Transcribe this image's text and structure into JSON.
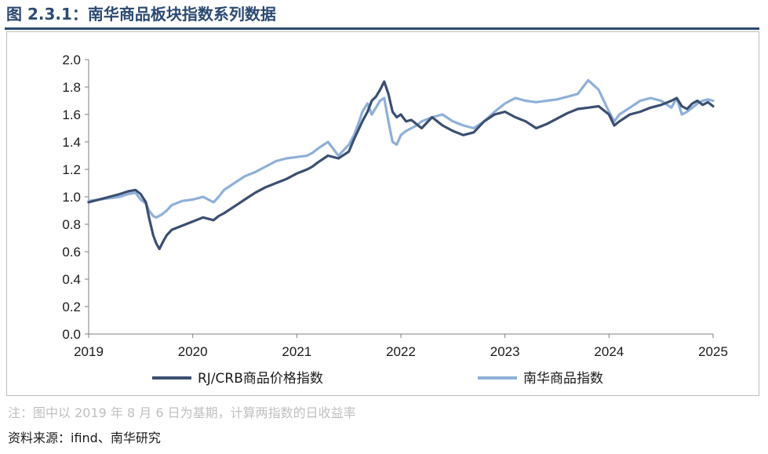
{
  "header": {
    "title": "图 2.3.1：南华商品板块指数系列数据"
  },
  "footer": {
    "note": "注：图中以 2019 年 8 月 6 日为基期，计算两指数的日收益率",
    "source": "资料来源：ifind、南华研究"
  },
  "colors": {
    "title": "#2c4a72",
    "series_dark": "#3b4f71",
    "series_light": "#8eb0d8",
    "axis": "#7f7f7f"
  },
  "chart_data": {
    "type": "line",
    "title": "",
    "xlabel": "",
    "ylabel": "",
    "xlim": [
      2019,
      2025
    ],
    "ylim": [
      0,
      2
    ],
    "xticks": [
      "2019",
      "2020",
      "2021",
      "2022",
      "2023",
      "2024",
      "2025"
    ],
    "yticks": [
      "0.0",
      "0.2",
      "0.4",
      "0.6",
      "0.8",
      "1.0",
      "1.2",
      "1.4",
      "1.6",
      "1.8",
      "2.0"
    ],
    "grid": false,
    "legend": "bottom",
    "series": [
      {
        "name": "RJ/CRB商品价格指数",
        "color": "#3b4f71",
        "x": [
          2019.0,
          2019.1,
          2019.2,
          2019.3,
          2019.38,
          2019.45,
          2019.5,
          2019.55,
          2019.58,
          2019.62,
          2019.65,
          2019.68,
          2019.72,
          2019.75,
          2019.8,
          2019.9,
          2020.0,
          2020.1,
          2020.2,
          2020.25,
          2020.3,
          2020.4,
          2020.5,
          2020.6,
          2020.7,
          2020.8,
          2020.9,
          2021.0,
          2021.1,
          2021.15,
          2021.2,
          2021.3,
          2021.4,
          2021.5,
          2021.55,
          2021.6,
          2021.63,
          2021.68,
          2021.72,
          2021.76,
          2021.8,
          2021.84,
          2021.88,
          2021.92,
          2021.96,
          2022.0,
          2022.05,
          2022.1,
          2022.15,
          2022.2,
          2022.3,
          2022.4,
          2022.5,
          2022.6,
          2022.7,
          2022.8,
          2022.9,
          2023.0,
          2023.1,
          2023.2,
          2023.3,
          2023.4,
          2023.5,
          2023.6,
          2023.7,
          2023.8,
          2023.9,
          2024.0,
          2024.05,
          2024.1,
          2024.2,
          2024.3,
          2024.4,
          2024.5,
          2024.6,
          2024.65,
          2024.7,
          2024.75,
          2024.8,
          2024.85,
          2024.9,
          2024.95,
          2025.0
        ],
        "values": [
          0.96,
          0.98,
          1.0,
          1.02,
          1.04,
          1.05,
          1.02,
          0.96,
          0.85,
          0.72,
          0.66,
          0.62,
          0.68,
          0.72,
          0.76,
          0.79,
          0.82,
          0.85,
          0.83,
          0.86,
          0.88,
          0.93,
          0.98,
          1.03,
          1.07,
          1.1,
          1.13,
          1.17,
          1.2,
          1.22,
          1.25,
          1.3,
          1.28,
          1.33,
          1.42,
          1.5,
          1.55,
          1.62,
          1.7,
          1.73,
          1.78,
          1.84,
          1.75,
          1.62,
          1.58,
          1.6,
          1.55,
          1.56,
          1.53,
          1.5,
          1.58,
          1.52,
          1.48,
          1.45,
          1.47,
          1.55,
          1.6,
          1.62,
          1.58,
          1.55,
          1.5,
          1.53,
          1.57,
          1.61,
          1.64,
          1.65,
          1.66,
          1.6,
          1.52,
          1.55,
          1.6,
          1.62,
          1.65,
          1.67,
          1.7,
          1.72,
          1.66,
          1.64,
          1.68,
          1.7,
          1.67,
          1.69,
          1.66
        ]
      },
      {
        "name": "南华商品指数",
        "color": "#8eb0d8",
        "x": [
          2019.0,
          2019.1,
          2019.2,
          2019.3,
          2019.38,
          2019.45,
          2019.5,
          2019.55,
          2019.58,
          2019.62,
          2019.65,
          2019.7,
          2019.75,
          2019.8,
          2019.9,
          2020.0,
          2020.1,
          2020.2,
          2020.25,
          2020.3,
          2020.4,
          2020.5,
          2020.6,
          2020.7,
          2020.8,
          2020.9,
          2021.0,
          2021.1,
          2021.15,
          2021.2,
          2021.3,
          2021.4,
          2021.5,
          2021.55,
          2021.6,
          2021.63,
          2021.68,
          2021.72,
          2021.76,
          2021.8,
          2021.84,
          2021.88,
          2021.92,
          2021.96,
          2022.0,
          2022.05,
          2022.1,
          2022.15,
          2022.2,
          2022.3,
          2022.4,
          2022.5,
          2022.6,
          2022.7,
          2022.8,
          2022.9,
          2023.0,
          2023.1,
          2023.2,
          2023.3,
          2023.4,
          2023.5,
          2023.6,
          2023.7,
          2023.75,
          2023.8,
          2023.9,
          2024.0,
          2024.05,
          2024.1,
          2024.2,
          2024.3,
          2024.4,
          2024.5,
          2024.6,
          2024.65,
          2024.7,
          2024.75,
          2024.8,
          2024.85,
          2024.9,
          2024.95,
          2025.0
        ],
        "values": [
          0.97,
          0.98,
          0.99,
          1.0,
          1.02,
          1.03,
          0.98,
          0.95,
          0.9,
          0.86,
          0.85,
          0.87,
          0.9,
          0.94,
          0.97,
          0.98,
          1.0,
          0.96,
          1.0,
          1.05,
          1.1,
          1.15,
          1.18,
          1.22,
          1.26,
          1.28,
          1.29,
          1.3,
          1.32,
          1.35,
          1.4,
          1.3,
          1.38,
          1.45,
          1.55,
          1.62,
          1.68,
          1.6,
          1.65,
          1.7,
          1.72,
          1.55,
          1.4,
          1.38,
          1.45,
          1.48,
          1.5,
          1.52,
          1.55,
          1.58,
          1.6,
          1.55,
          1.52,
          1.5,
          1.55,
          1.62,
          1.68,
          1.72,
          1.7,
          1.69,
          1.7,
          1.71,
          1.73,
          1.75,
          1.8,
          1.85,
          1.78,
          1.62,
          1.55,
          1.6,
          1.65,
          1.7,
          1.72,
          1.7,
          1.65,
          1.72,
          1.6,
          1.62,
          1.65,
          1.68,
          1.7,
          1.71,
          1.7
        ]
      }
    ]
  }
}
